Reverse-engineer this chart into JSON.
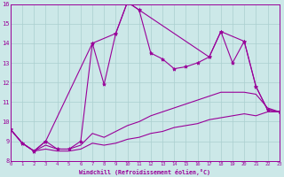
{
  "xlabel": "Windchill (Refroidissement éolien,°C)",
  "bg_color": "#cce8e8",
  "grid_color": "#aacfcf",
  "line_color": "#990099",
  "xmin": 0,
  "xmax": 23,
  "ymin": 8,
  "ymax": 16,
  "series": [
    {
      "name": "spiky_all_points",
      "x": [
        0,
        1,
        2,
        3,
        4,
        5,
        6,
        7,
        8,
        9,
        10,
        11,
        12,
        13,
        14,
        15,
        16,
        17,
        18,
        19,
        20,
        21,
        22,
        23
      ],
      "y": [
        9.6,
        8.9,
        8.5,
        9.0,
        8.6,
        8.6,
        9.0,
        14.0,
        11.9,
        14.5,
        16.1,
        15.7,
        13.5,
        13.2,
        12.7,
        12.8,
        13.0,
        13.3,
        14.6,
        13.0,
        14.1,
        11.8,
        10.6,
        10.5
      ],
      "style": "-",
      "marker": "*",
      "markersize": 3.0,
      "lw": 0.8
    },
    {
      "name": "smooth_upper",
      "x": [
        0,
        1,
        2,
        3,
        4,
        5,
        6,
        7,
        8,
        9,
        10,
        11,
        12,
        13,
        14,
        15,
        16,
        17,
        18,
        19,
        20,
        21,
        22,
        23
      ],
      "y": [
        9.6,
        8.9,
        8.5,
        8.8,
        8.6,
        8.6,
        8.8,
        9.4,
        9.2,
        9.5,
        9.8,
        10.0,
        10.3,
        10.5,
        10.7,
        10.9,
        11.1,
        11.3,
        11.5,
        11.5,
        11.5,
        11.4,
        10.7,
        10.5
      ],
      "style": "-",
      "marker": "None",
      "markersize": 0,
      "lw": 0.8
    },
    {
      "name": "smooth_lower",
      "x": [
        0,
        1,
        2,
        3,
        4,
        5,
        6,
        7,
        8,
        9,
        10,
        11,
        12,
        13,
        14,
        15,
        16,
        17,
        18,
        19,
        20,
        21,
        22,
        23
      ],
      "y": [
        9.6,
        8.9,
        8.5,
        8.6,
        8.5,
        8.5,
        8.6,
        8.9,
        8.8,
        8.9,
        9.1,
        9.2,
        9.4,
        9.5,
        9.7,
        9.8,
        9.9,
        10.1,
        10.2,
        10.3,
        10.4,
        10.3,
        10.5,
        10.5
      ],
      "style": "-",
      "marker": "None",
      "markersize": 0,
      "lw": 0.8
    },
    {
      "name": "key_points_with_markers",
      "x": [
        0,
        1,
        2,
        3,
        7,
        9,
        10,
        11,
        17,
        18,
        20,
        21,
        22,
        23
      ],
      "y": [
        9.6,
        8.9,
        8.5,
        9.0,
        14.0,
        14.5,
        16.1,
        15.7,
        13.3,
        14.6,
        14.1,
        11.8,
        10.6,
        10.5
      ],
      "style": "-",
      "marker": "*",
      "markersize": 3.0,
      "lw": 0.8
    }
  ]
}
